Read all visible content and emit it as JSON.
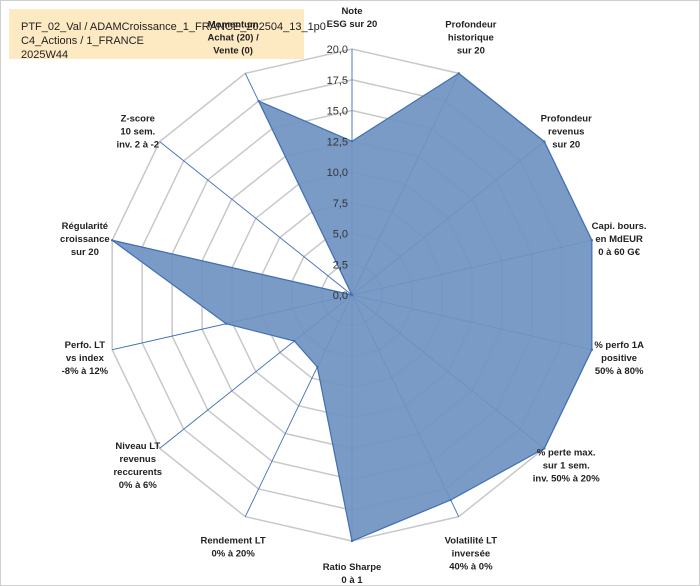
{
  "title_lines": [
    "PTF_02_Val / ADAMCroissance_1_FRANCE_202504_13_1p0",
    "C4_Actions / 1_FRANCE",
    "2025W44"
  ],
  "colors": {
    "fill": "#6f93c2",
    "stroke": "#3f6fb6",
    "grid": "#c8c8c8",
    "spoke": "#3f6fb6",
    "title_bg": "#fde9c2"
  },
  "chart_data": {
    "type": "radar",
    "title": "",
    "rmax": 20,
    "ticks": [
      0,
      2.5,
      5,
      7.5,
      10,
      12.5,
      15,
      17.5,
      20
    ],
    "tick_labels": [
      "0,0",
      "2,5",
      "5,0",
      "7,5",
      "10,0",
      "12,5",
      "15,0",
      "17,5",
      "20,0"
    ],
    "axes": [
      {
        "label": [
          "Note",
          "ESG sur 20"
        ],
        "value": 12.5
      },
      {
        "label": [
          "Profondeur",
          "historique",
          "sur 20"
        ],
        "value": 20
      },
      {
        "label": [
          "Profondeur",
          "revenus",
          "sur 20"
        ],
        "value": 20
      },
      {
        "label": [
          "Capi. bours.",
          "en MdEUR",
          "0 à 60 G€"
        ],
        "value": 20
      },
      {
        "label": [
          "% perfo 1A",
          "positive",
          "50% à 80%"
        ],
        "value": 20
      },
      {
        "label": [
          "% perte max.",
          "sur 1 sem.",
          "inv. 50% à 20%"
        ],
        "value": 20
      },
      {
        "label": [
          "Volatilité LT",
          "inversée",
          "40% à 0%"
        ],
        "value": 18.5
      },
      {
        "label": [
          "Ratio Sharpe",
          "0 à 1"
        ],
        "value": 20
      },
      {
        "label": [
          "Rendement LT",
          "0% à 20%"
        ],
        "value": 6.5
      },
      {
        "label": [
          "Niveau LT",
          "revenus",
          "reccurents",
          "0% à 6%"
        ],
        "value": 6
      },
      {
        "label": [
          "Perfo. LT",
          "vs index",
          "-8% à 12%"
        ],
        "value": 10.5
      },
      {
        "label": [
          "Régularité",
          "croissance",
          "sur 20"
        ],
        "value": 20
      },
      {
        "label": [
          "Z-score",
          "10 sem.",
          "inv. 2 à -2"
        ],
        "value": 0
      },
      {
        "label": [
          "Momentum",
          "Achat (20) /",
          "Vente (0)"
        ],
        "value": 17.5
      }
    ]
  }
}
